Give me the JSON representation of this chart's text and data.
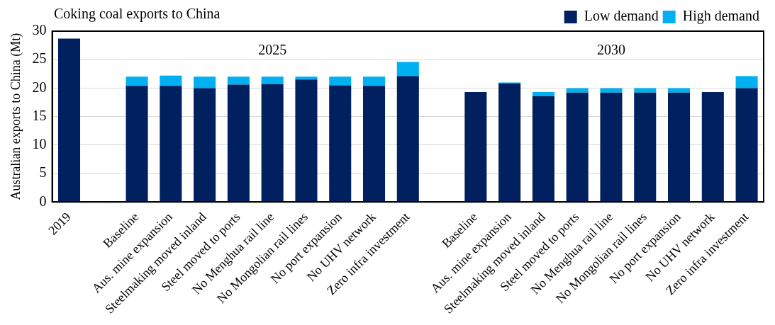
{
  "chart_data": {
    "type": "bar",
    "title": "Coking coal exports to China",
    "ylabel": "Australian exports to China (Mt)",
    "categories": [
      "2019",
      null,
      "Baseline",
      "Aus. mine expansion",
      "Steelmaking moved inland",
      "Steel moved to ports",
      "No Menghua rail line",
      "No Mongolian rail lines",
      "No port expansion",
      "No UHV network",
      "Zero infra investment",
      null,
      "Baseline",
      "Aus. mine expansion",
      "Steelmaking moved inland",
      "Steel moved to ports",
      "No Menghua rail line",
      "No Mongolian rail lines",
      "No port expansion",
      "No UHV network",
      "Zero infra investment"
    ],
    "series": [
      {
        "name": "Low demand",
        "color": "#002060",
        "values": [
          28.7,
          null,
          20.4,
          20.4,
          20.0,
          20.6,
          20.7,
          21.5,
          20.5,
          20.4,
          22.1,
          null,
          19.3,
          20.8,
          18.6,
          19.2,
          19.2,
          19.2,
          19.2,
          19.3,
          20.0
        ]
      },
      {
        "name": "High demand",
        "color": "#00b0f0",
        "values": [
          null,
          null,
          1.6,
          1.8,
          2.0,
          1.4,
          1.3,
          0.5,
          1.5,
          1.6,
          2.5,
          null,
          0,
          0.2,
          0.7,
          0.8,
          0.8,
          0.8,
          0.8,
          0,
          2.1
        ]
      }
    ],
    "stacked": true,
    "ylim": [
      0,
      30
    ],
    "yticks": [
      0,
      5,
      10,
      15,
      20,
      25,
      30
    ],
    "grid": "y",
    "legend": "top right",
    "annotations": [
      "2025",
      "2030"
    ]
  }
}
